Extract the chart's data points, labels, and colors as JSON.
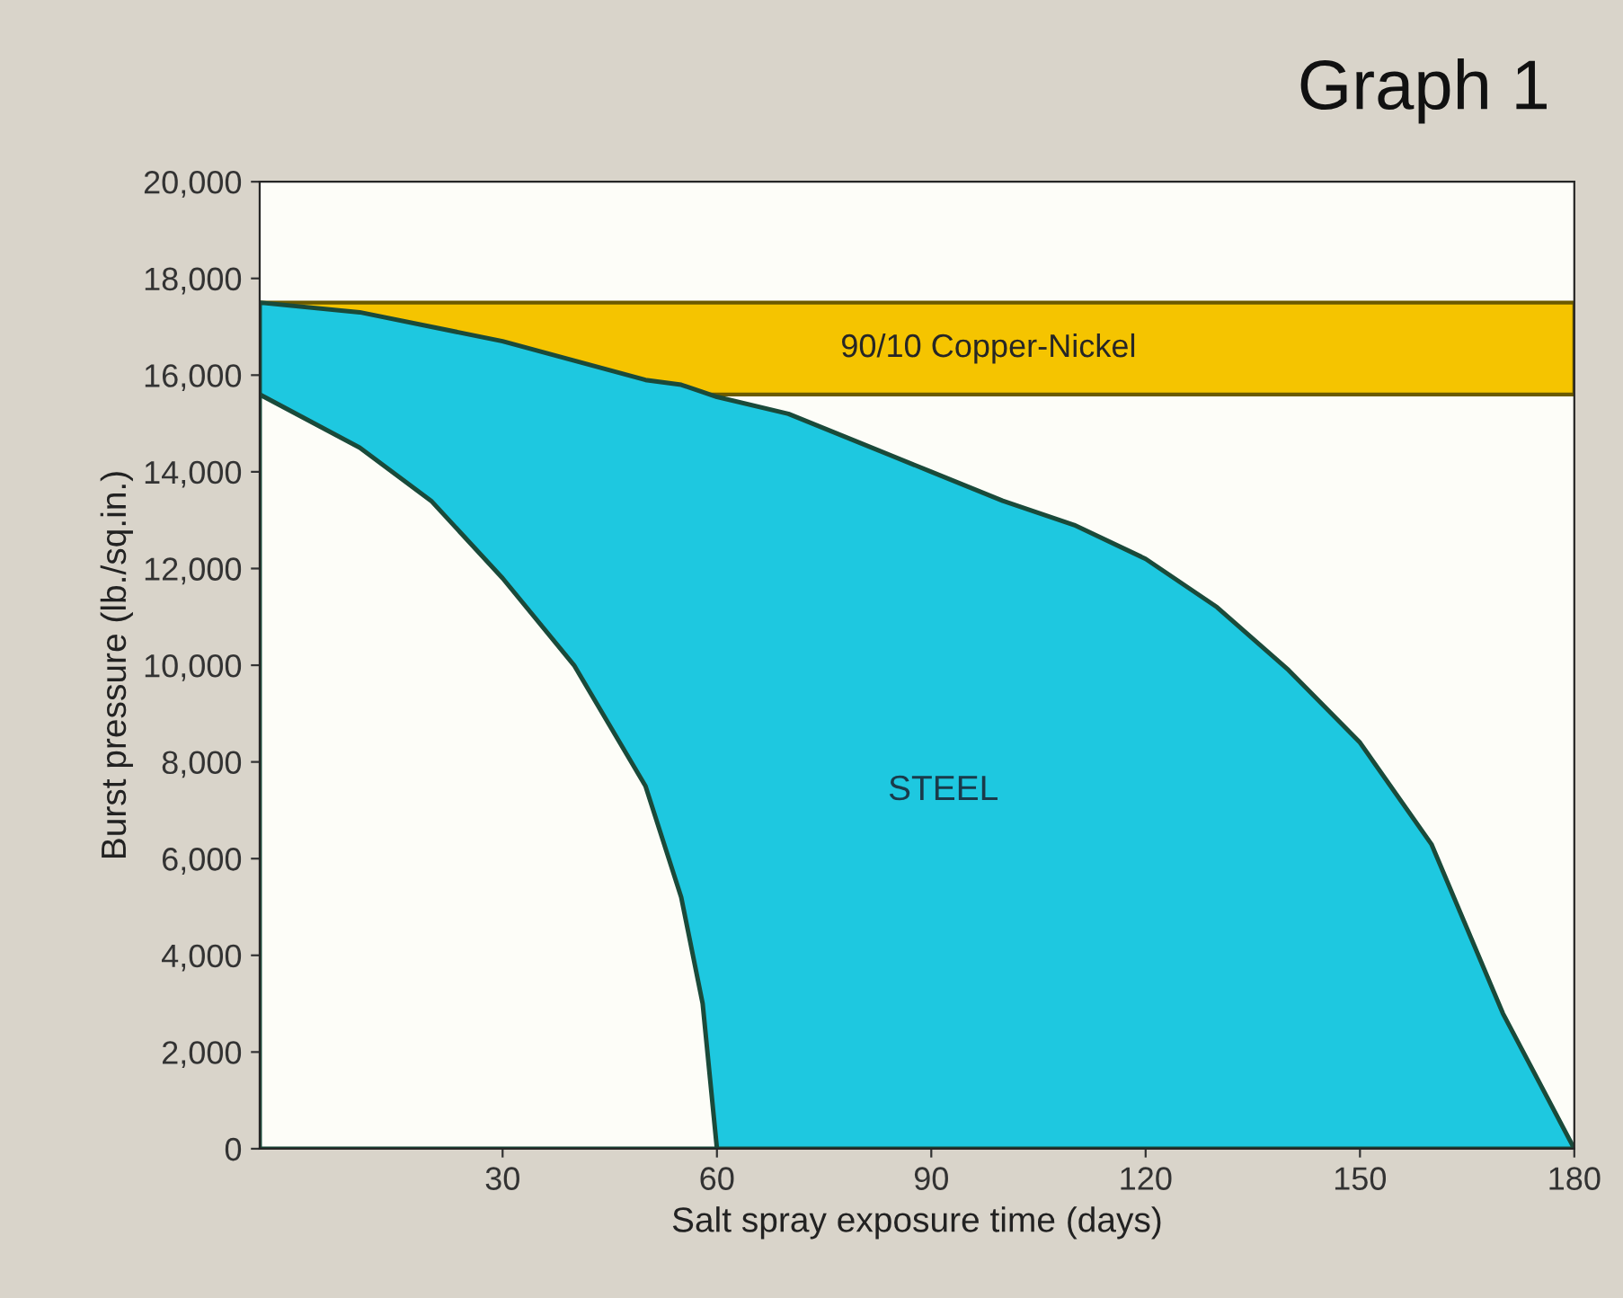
{
  "chart_data": {
    "type": "area",
    "title": "Graph 1",
    "xlabel": "Salt spray exposure time (days)",
    "ylabel": "Burst pressure (lb./sq.in.)",
    "x": [
      -4,
      10,
      20,
      30,
      40,
      50,
      55,
      58,
      60,
      70,
      80,
      90,
      100,
      110,
      120,
      130,
      140,
      150,
      160,
      170,
      180
    ],
    "series": [
      {
        "color": "#1ec8e0",
        "values": [
          17500,
          17300,
          17000,
          16700,
          16300,
          15900,
          15800,
          15650,
          15550,
          15200,
          14600,
          14000,
          13400,
          12900,
          12200,
          11200,
          9900,
          8400,
          6300,
          2800,
          0
        ]
      },
      {
        "color": "#fdfdf8",
        "x": [
          -4,
          10,
          20,
          30,
          40,
          50,
          55,
          58,
          60
        ],
        "values": [
          15600,
          14500,
          13400,
          11800,
          10000,
          7500,
          5200,
          3000,
          0
        ]
      }
    ],
    "bands": [
      {
        "axis": "y",
        "from": 15600,
        "to": 17500,
        "label": "90/10 Copper-Nickel",
        "color": "#f5c400"
      }
    ],
    "annotations": [
      "STEEL"
    ],
    "xlim": [
      -4,
      180
    ],
    "ylim": [
      0,
      20000
    ],
    "xticks": [
      30,
      60,
      90,
      120,
      150,
      180
    ],
    "yticks": [
      0,
      {
        "value": 2000,
        "label": "2,000"
      },
      {
        "value": 4000,
        "label": "4,000"
      },
      {
        "value": 6000,
        "label": "6,000"
      },
      {
        "value": 8000,
        "label": "8,000"
      },
      {
        "value": 10000,
        "label": "10,000"
      },
      {
        "value": 12000,
        "label": "12,000"
      },
      {
        "value": 14000,
        "label": "14,000"
      },
      {
        "value": 16000,
        "label": "16,000"
      },
      {
        "value": 18000,
        "label": "18,000"
      },
      {
        "value": 20000,
        "label": "20,000"
      }
    ],
    "grid": false,
    "legend": false
  }
}
